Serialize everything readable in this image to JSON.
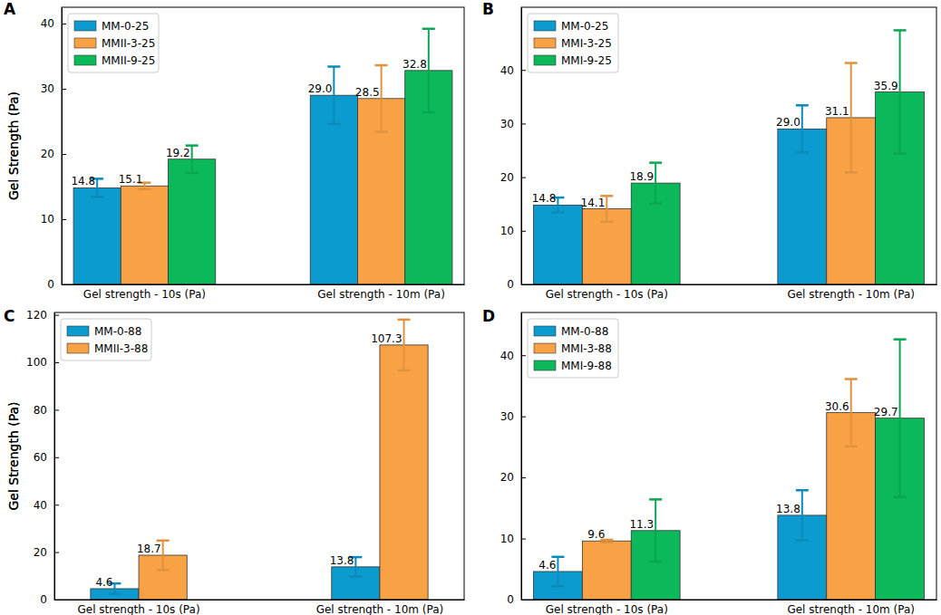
{
  "chart_data": [
    {
      "type": "bar",
      "title": "A",
      "y_label": "Gel Strength (Pa)",
      "categories": [
        "Gel strength - 10s (Pa)",
        "Gel strength - 10m (Pa)"
      ],
      "series": [
        {
          "name": "MM-0-25",
          "color": "#0c9bce",
          "values": [
            14.8,
            29.0
          ],
          "value_labels": [
            "14.8",
            "29.0"
          ],
          "errors": [
            1.4,
            4.4
          ]
        },
        {
          "name": "MMII-3-25",
          "color": "#f9a245",
          "values": [
            15.1,
            28.5
          ],
          "value_labels": [
            "15.1",
            "28.5"
          ],
          "errors": [
            0.5,
            5.1
          ]
        },
        {
          "name": "MMII-9-25",
          "color": "#0bb95a",
          "values": [
            19.2,
            32.8
          ],
          "value_labels": [
            "19.2",
            "32.8"
          ],
          "errors": [
            2.1,
            6.4
          ]
        }
      ],
      "ylim": [
        0,
        42.5
      ],
      "yticks": [
        0,
        10,
        20,
        30,
        40
      ],
      "data_labels": true,
      "legend": "upper left",
      "grid": false
    },
    {
      "type": "bar",
      "title": "B",
      "y_label": "Gel Strength (Pa)",
      "categories": [
        "Gel strength - 10s (Pa)",
        "Gel strength - 10m (Pa)"
      ],
      "series": [
        {
          "name": "MM-0-25",
          "color": "#0c9bce",
          "values": [
            14.8,
            29.0
          ],
          "value_labels": [
            "14.8",
            "29.0"
          ],
          "errors": [
            1.4,
            4.4
          ]
        },
        {
          "name": "MMI-3-25",
          "color": "#f9a245",
          "values": [
            14.1,
            31.1
          ],
          "value_labels": [
            "14.1",
            "31.1"
          ],
          "errors": [
            2.4,
            10.2
          ]
        },
        {
          "name": "MMI-9-25",
          "color": "#0bb95a",
          "values": [
            18.9,
            35.9
          ],
          "value_labels": [
            "18.9",
            "35.9"
          ],
          "errors": [
            3.8,
            11.5
          ]
        }
      ],
      "ylim": [
        0,
        51.7
      ],
      "yticks": [
        0,
        10,
        20,
        30,
        40
      ],
      "data_labels": true,
      "legend": "upper left",
      "grid": false
    },
    {
      "type": "bar",
      "title": "C",
      "y_label": "Gel Strength (Pa)",
      "categories": [
        "Gel strength - 10s (Pa)",
        "Gel strength - 10m (Pa)"
      ],
      "series": [
        {
          "name": "MM-0-88",
          "color": "#0c9bce",
          "values": [
            4.6,
            13.8
          ],
          "errors": [
            2.2,
            4.1
          ]
        },
        {
          "name": "MMII-3-88",
          "color": "#f9a245",
          "values": [
            18.7,
            107.3
          ],
          "errors": [
            6.2,
            10.7
          ]
        }
      ],
      "ylim": [
        0,
        121
      ],
      "yticks": [
        0,
        20,
        40,
        60,
        80,
        100,
        120
      ],
      "data_labels": true,
      "legend": "upper left",
      "grid": false
    },
    {
      "type": "bar",
      "title": "D",
      "y_label": "Gel Strength (Pa)",
      "categories": [
        "Gel strength - 10s (Pa)",
        "Gel strength - 10m (Pa)"
      ],
      "series": [
        {
          "name": "MM-0-88",
          "color": "#0c9bce",
          "values": [
            4.6,
            13.8
          ],
          "errors": [
            2.4,
            4.1
          ]
        },
        {
          "name": "MMI-3-88",
          "color": "#f9a245",
          "values": [
            9.6,
            30.6
          ],
          "errors": [
            0.2,
            5.5
          ]
        },
        {
          "name": "MMI-9-88",
          "color": "#0bb95a",
          "values": [
            11.3,
            29.7
          ],
          "errors": [
            5.1,
            12.9
          ]
        }
      ],
      "ylim": [
        0,
        47
      ],
      "yticks": [
        0,
        10,
        20,
        30,
        40
      ],
      "data_labels": true,
      "legend": "upper left",
      "grid": false
    }
  ]
}
